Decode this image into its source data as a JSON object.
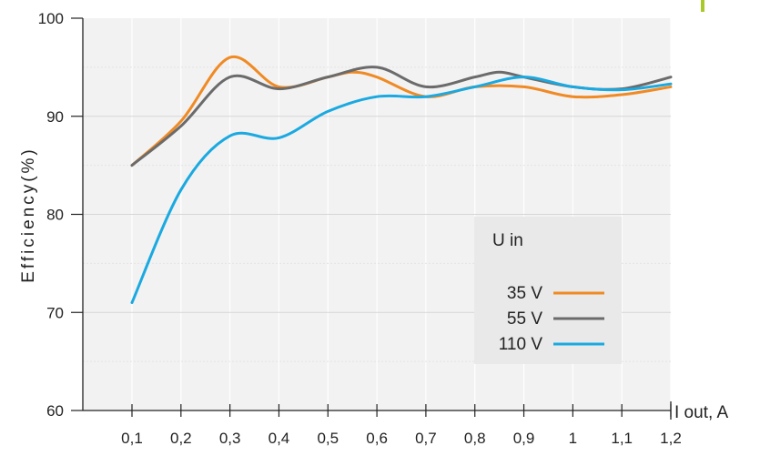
{
  "chart_data": {
    "type": "line",
    "title": "",
    "xlabel": "I out, A",
    "ylabel": "Efficiency(%)",
    "xlim": [
      0.1,
      1.2
    ],
    "ylim": [
      60,
      100
    ],
    "categories": [
      "0,1",
      "0,2",
      "0,3",
      "0,4",
      "0,5",
      "0,6",
      "0,7",
      "0,8",
      "0,9",
      "1",
      "1,1",
      "1,2"
    ],
    "y_ticks": [
      "60",
      "70",
      "80",
      "90",
      "100"
    ],
    "grid": true,
    "legend": {
      "title": "U in",
      "position": "center-right"
    },
    "series": [
      {
        "name": "35 V",
        "color": "#f08a24",
        "x": [
          0.1,
          0.2,
          0.3,
          0.4,
          0.5,
          0.55,
          0.6,
          0.7,
          0.8,
          0.9,
          1.0,
          1.1,
          1.2
        ],
        "values": [
          85,
          89.5,
          96,
          93,
          94,
          94.5,
          94,
          92,
          93,
          93,
          92,
          92.2,
          93
        ]
      },
      {
        "name": "55 V",
        "color": "#6b6b6b",
        "x": [
          0.1,
          0.2,
          0.3,
          0.4,
          0.5,
          0.6,
          0.7,
          0.8,
          0.85,
          0.9,
          1.0,
          1.1,
          1.2
        ],
        "values": [
          85,
          89,
          94,
          92.8,
          94,
          95,
          93,
          94,
          94.5,
          94,
          93,
          92.8,
          94
        ]
      },
      {
        "name": "110 V",
        "color": "#1aa9e0",
        "x": [
          0.1,
          0.2,
          0.3,
          0.4,
          0.5,
          0.6,
          0.7,
          0.8,
          0.9,
          1.0,
          1.1,
          1.2
        ],
        "values": [
          71,
          82.5,
          88,
          87.8,
          90.5,
          92,
          92,
          93,
          94,
          93,
          92.7,
          93.3
        ]
      }
    ]
  }
}
